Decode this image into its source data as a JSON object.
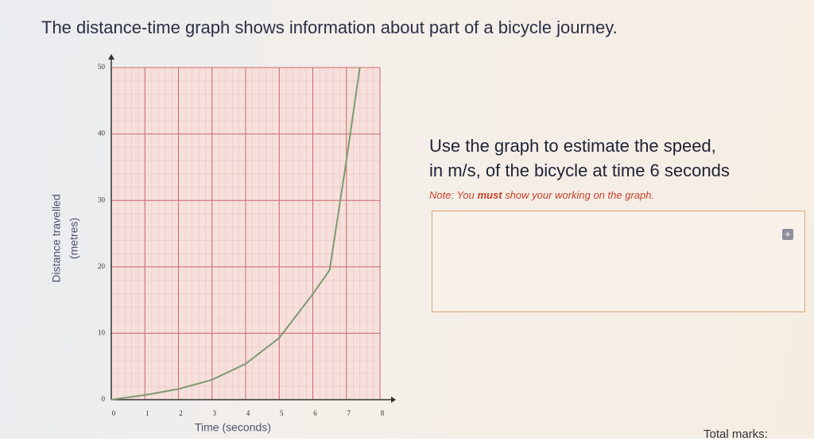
{
  "header": {
    "title": "The distance-time graph shows information about part of a bicycle journey."
  },
  "chart_data": {
    "type": "line",
    "x_label": "Time (seconds)",
    "y_label": [
      "Distance travelled",
      "(metres)"
    ],
    "x": [
      0,
      1,
      2,
      3,
      4,
      5,
      6,
      6.5,
      7,
      7.4
    ],
    "series": [
      {
        "color": "#7d9a72",
        "values": [
          0,
          0.7,
          1.6,
          3,
          5.4,
          9.3,
          15.9,
          19.5,
          36,
          50
        ]
      }
    ],
    "xlim": [
      0,
      8
    ],
    "xticks": [
      0,
      1,
      2,
      3,
      4,
      5,
      6,
      7,
      8
    ],
    "ylim": [
      0,
      50
    ],
    "yticks": [
      0,
      10,
      20,
      30,
      40,
      50
    ],
    "grid": true
  },
  "question": {
    "lines": [
      "Use the graph to estimate the speed,",
      "in m/s, of the bicycle at time 6 seconds"
    ],
    "note": [
      "Note: You",
      "must",
      "show your working on the graph."
    ]
  },
  "footer": {
    "total_marks": "Total marks:"
  }
}
